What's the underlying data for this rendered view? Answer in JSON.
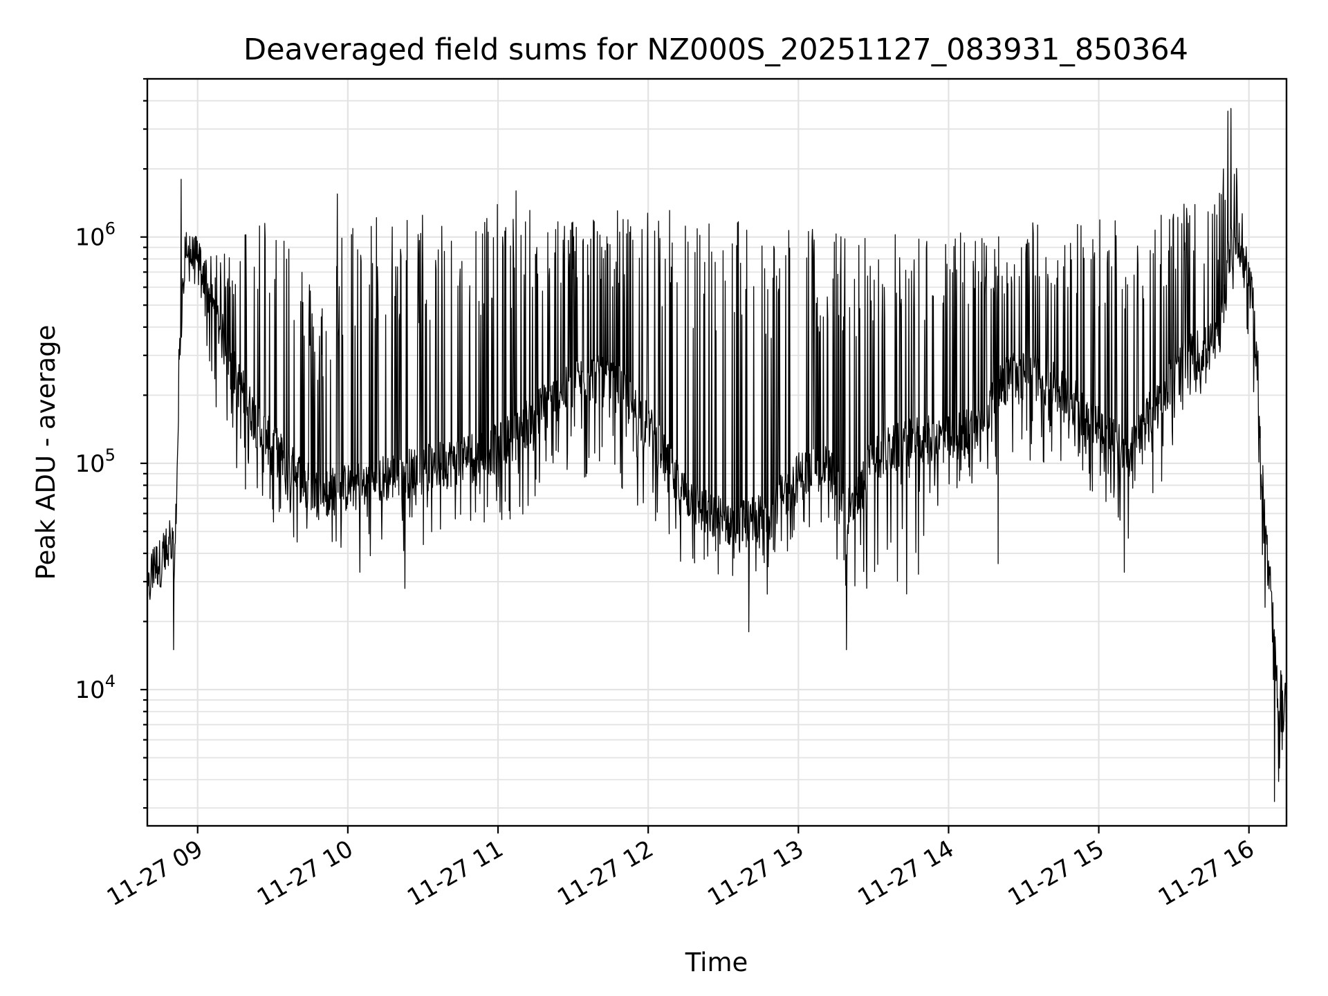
{
  "chart_data": {
    "type": "line",
    "title": "Deaveraged field sums for NZ000S_20251127_083931_850364",
    "xlabel": "Time",
    "ylabel": "Peak ADU - average",
    "yscale": "log",
    "ylim": [
      2500,
      5000000
    ],
    "xlim_hours": [
      8.665,
      16.25
    ],
    "grid": true,
    "line_color": "#000000",
    "x_ticks": [
      {
        "value": 9,
        "label": "11-27 09"
      },
      {
        "value": 10,
        "label": "11-27 10"
      },
      {
        "value": 11,
        "label": "11-27 11"
      },
      {
        "value": 12,
        "label": "11-27 12"
      },
      {
        "value": 13,
        "label": "11-27 13"
      },
      {
        "value": 14,
        "label": "11-27 14"
      },
      {
        "value": 15,
        "label": "11-27 15"
      },
      {
        "value": 16,
        "label": "11-27 16"
      }
    ],
    "y_ticks": [
      {
        "value": 10000,
        "base": "10",
        "exp": "4"
      },
      {
        "value": 100000,
        "base": "10",
        "exp": "5"
      },
      {
        "value": 1000000,
        "base": "10",
        "exp": "6"
      }
    ],
    "series": [
      {
        "name": "field sums",
        "envelope": {
          "x": [
            8.665,
            8.7,
            8.8,
            8.85,
            8.88,
            8.92,
            9.0,
            9.1,
            9.25,
            9.4,
            9.6,
            9.8,
            10.0,
            10.3,
            10.6,
            11.0,
            11.3,
            11.6,
            11.8,
            12.0,
            12.2,
            12.4,
            12.6,
            12.8,
            13.0,
            13.2,
            13.35,
            13.5,
            13.8,
            14.0,
            14.2,
            14.4,
            14.6,
            14.8,
            15.0,
            15.2,
            15.4,
            15.6,
            15.8,
            15.88,
            15.95,
            16.0,
            16.05,
            16.1,
            16.15,
            16.2,
            16.25
          ],
          "base": [
            25000,
            35000,
            40000,
            40000,
            300000,
            850000,
            800000,
            500000,
            250000,
            150000,
            100000,
            75000,
            80000,
            90000,
            100000,
            120000,
            180000,
            250000,
            220000,
            150000,
            80000,
            60000,
            55000,
            60000,
            90000,
            100000,
            60000,
            110000,
            130000,
            130000,
            150000,
            250000,
            250000,
            200000,
            150000,
            110000,
            200000,
            300000,
            350000,
            1000000,
            900000,
            600000,
            300000,
            60000,
            20000,
            8000,
            9000
          ],
          "high": [
            30000,
            45000,
            55000,
            60000,
            500000,
            1100000,
            1000000,
            800000,
            1000000,
            1400000,
            1400000,
            500000,
            1400000,
            1300000,
            1350000,
            1400000,
            1300000,
            1300000,
            1350000,
            1300000,
            1350000,
            1300000,
            1300000,
            1300000,
            1200000,
            1100000,
            1050000,
            1050000,
            1050000,
            1050000,
            1100000,
            1100000,
            1200000,
            1200000,
            1300000,
            1300000,
            1400000,
            1400000,
            1500000,
            3600000,
            1500000,
            800000,
            500000,
            80000,
            30000,
            12000,
            13000
          ],
          "low": [
            20000,
            25000,
            30000,
            30000,
            250000,
            800000,
            700000,
            200000,
            90000,
            55000,
            45000,
            42000,
            40000,
            38000,
            45000,
            55000,
            60000,
            80000,
            70000,
            60000,
            30000,
            28000,
            22000,
            25000,
            50000,
            45000,
            20000,
            30000,
            25000,
            75000,
            75000,
            100000,
            100000,
            90000,
            70000,
            45000,
            70000,
            200000,
            200000,
            600000,
            500000,
            350000,
            150000,
            20000,
            4000,
            3500,
            7000
          ]
        },
        "spikes": [
          {
            "x": 8.84,
            "y": 15000
          },
          {
            "x": 8.89,
            "y": 1800000
          },
          {
            "x": 9.93,
            "y": 1550000
          },
          {
            "x": 10.08,
            "y": 33000
          },
          {
            "x": 10.38,
            "y": 28000
          },
          {
            "x": 11.12,
            "y": 1600000
          },
          {
            "x": 12.67,
            "y": 18000
          },
          {
            "x": 13.32,
            "y": 15000
          },
          {
            "x": 14.33,
            "y": 36000
          },
          {
            "x": 15.17,
            "y": 33000
          },
          {
            "x": 15.83,
            "y": 2000000
          },
          {
            "x": 15.86,
            "y": 3600000
          },
          {
            "x": 15.88,
            "y": 3700000
          },
          {
            "x": 16.17,
            "y": 3200
          }
        ]
      }
    ]
  }
}
